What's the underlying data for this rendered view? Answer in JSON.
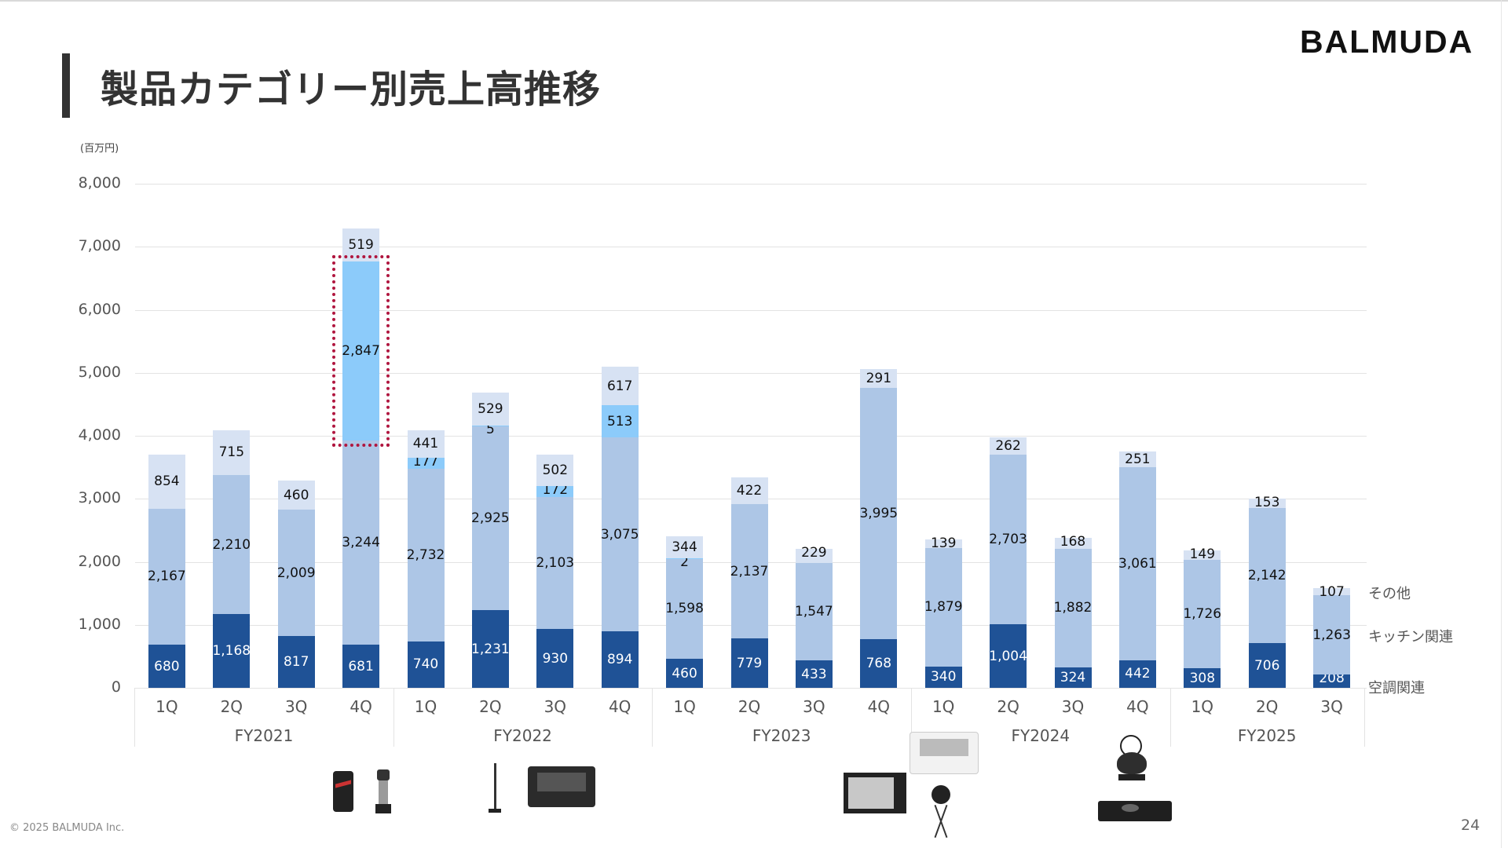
{
  "header": {
    "title": "製品カテゴリー別売上高推移",
    "logo": "BALMUDA"
  },
  "footer": {
    "copyright": "© 2025 BALMUDA Inc.",
    "page_number": "24"
  },
  "colors": {
    "air_conditioning": "#1f5296",
    "kitchen": "#adc6e6",
    "highlight_segment": "#8ccbfa",
    "other": "#d7e2f3",
    "highlight_border": "#b0163f"
  },
  "legend": {
    "other": "その他",
    "kitchen": "キッチン関連",
    "air_conditioning": "空調関連"
  },
  "axis": {
    "unit": "(百万円)",
    "yticks": [
      "8,000",
      "7,000",
      "6,000",
      "5,000",
      "4,000",
      "3,000",
      "2,000",
      "1,000",
      "0"
    ]
  },
  "chart_data": {
    "type": "bar",
    "stacked": true,
    "title": "製品カテゴリー別売上高推移",
    "ylabel": "(百万円)",
    "ylim": [
      0,
      8000
    ],
    "grid": true,
    "legend_position": "right",
    "fiscal_years": [
      {
        "label": "FY2021",
        "quarters": [
          "1Q",
          "2Q",
          "3Q",
          "4Q"
        ]
      },
      {
        "label": "FY2022",
        "quarters": [
          "1Q",
          "2Q",
          "3Q",
          "4Q"
        ]
      },
      {
        "label": "FY2023",
        "quarters": [
          "1Q",
          "2Q",
          "3Q",
          "4Q"
        ]
      },
      {
        "label": "FY2024",
        "quarters": [
          "1Q",
          "2Q",
          "3Q",
          "4Q"
        ]
      },
      {
        "label": "FY2025",
        "quarters": [
          "1Q",
          "2Q",
          "3Q"
        ]
      }
    ],
    "categories": [
      "FY2021 1Q",
      "FY2021 2Q",
      "FY2021 3Q",
      "FY2021 4Q",
      "FY2022 1Q",
      "FY2022 2Q",
      "FY2022 3Q",
      "FY2022 4Q",
      "FY2023 1Q",
      "FY2023 2Q",
      "FY2023 3Q",
      "FY2023 4Q",
      "FY2024 1Q",
      "FY2024 2Q",
      "FY2024 3Q",
      "FY2024 4Q",
      "FY2025 1Q",
      "FY2025 2Q",
      "FY2025 3Q"
    ],
    "series": [
      {
        "name": "空調関連",
        "values": [
          680,
          1168,
          817,
          681,
          740,
          1231,
          930,
          894,
          460,
          779,
          433,
          768,
          340,
          1004,
          324,
          442,
          308,
          706,
          208
        ]
      },
      {
        "name": "キッチン関連",
        "values": [
          2167,
          2210,
          2009,
          3244,
          2732,
          2925,
          2103,
          3075,
          1598,
          2137,
          1547,
          3995,
          1879,
          2703,
          1882,
          3061,
          1726,
          2142,
          1263
        ]
      },
      {
        "name": "highlighted category (light blue)",
        "values": [
          0,
          0,
          0,
          2847,
          177,
          5,
          172,
          513,
          2,
          0,
          0,
          0,
          0,
          0,
          0,
          0,
          0,
          0,
          0
        ]
      },
      {
        "name": "その他",
        "values": [
          854,
          715,
          460,
          519,
          441,
          529,
          502,
          617,
          344,
          422,
          229,
          291,
          139,
          262,
          168,
          251,
          149,
          153,
          107
        ]
      }
    ],
    "annotations": [
      "Dotted red box around FY2021 4Q light-blue segment (2,847)"
    ]
  },
  "bars": [
    {
      "q": "1Q",
      "ac": 680,
      "kt": 2167,
      "hl": 0,
      "ot": 854,
      "ac_l": "680",
      "kt_l": "2,167",
      "hl_l": "",
      "ot_l": "854"
    },
    {
      "q": "2Q",
      "ac": 1168,
      "kt": 2210,
      "hl": 0,
      "ot": 715,
      "ac_l": "1,168",
      "kt_l": "2,210",
      "hl_l": "",
      "ot_l": "715"
    },
    {
      "q": "3Q",
      "ac": 817,
      "kt": 2009,
      "hl": 0,
      "ot": 460,
      "ac_l": "817",
      "kt_l": "2,009",
      "hl_l": "",
      "ot_l": "460"
    },
    {
      "q": "4Q",
      "ac": 681,
      "kt": 3244,
      "hl": 2847,
      "ot": 519,
      "ac_l": "681",
      "kt_l": "3,244",
      "hl_l": "2,847",
      "ot_l": "519"
    },
    {
      "q": "1Q",
      "ac": 740,
      "kt": 2732,
      "hl": 177,
      "ot": 441,
      "ac_l": "740",
      "kt_l": "2,732",
      "hl_l": "177",
      "ot_l": "441"
    },
    {
      "q": "2Q",
      "ac": 1231,
      "kt": 2925,
      "hl": 5,
      "ot": 529,
      "ac_l": "1,231",
      "kt_l": "2,925",
      "hl_l": "5",
      "ot_l": "529"
    },
    {
      "q": "3Q",
      "ac": 930,
      "kt": 2103,
      "hl": 172,
      "ot": 502,
      "ac_l": "930",
      "kt_l": "2,103",
      "hl_l": "172",
      "ot_l": "502"
    },
    {
      "q": "4Q",
      "ac": 894,
      "kt": 3075,
      "hl": 513,
      "ot": 617,
      "ac_l": "894",
      "kt_l": "3,075",
      "hl_l": "513",
      "ot_l": "617"
    },
    {
      "q": "1Q",
      "ac": 460,
      "kt": 1598,
      "hl": 2,
      "ot": 344,
      "ac_l": "460",
      "kt_l": "1,598",
      "hl_l": "2",
      "ot_l": "344"
    },
    {
      "q": "2Q",
      "ac": 779,
      "kt": 2137,
      "hl": 0,
      "ot": 422,
      "ac_l": "779",
      "kt_l": "2,137",
      "hl_l": "",
      "ot_l": "422"
    },
    {
      "q": "3Q",
      "ac": 433,
      "kt": 1547,
      "hl": 0,
      "ot": 229,
      "ac_l": "433",
      "kt_l": "1,547",
      "hl_l": "",
      "ot_l": "229"
    },
    {
      "q": "4Q",
      "ac": 768,
      "kt": 3995,
      "hl": 0,
      "ot": 291,
      "ac_l": "768",
      "kt_l": "3,995",
      "hl_l": "",
      "ot_l": "291"
    },
    {
      "q": "1Q",
      "ac": 340,
      "kt": 1879,
      "hl": 0,
      "ot": 139,
      "ac_l": "340",
      "kt_l": "1,879",
      "hl_l": "",
      "ot_l": "139"
    },
    {
      "q": "2Q",
      "ac": 1004,
      "kt": 2703,
      "hl": 0,
      "ot": 262,
      "ac_l": "1,004",
      "kt_l": "2,703",
      "hl_l": "",
      "ot_l": "262"
    },
    {
      "q": "3Q",
      "ac": 324,
      "kt": 1882,
      "hl": 0,
      "ot": 168,
      "ac_l": "324",
      "kt_l": "1,882",
      "hl_l": "",
      "ot_l": "168"
    },
    {
      "q": "4Q",
      "ac": 442,
      "kt": 3061,
      "hl": 0,
      "ot": 251,
      "ac_l": "442",
      "kt_l": "3,061",
      "hl_l": "",
      "ot_l": "251"
    },
    {
      "q": "1Q",
      "ac": 308,
      "kt": 1726,
      "hl": 0,
      "ot": 149,
      "ac_l": "308",
      "kt_l": "1,726",
      "hl_l": "",
      "ot_l": "149"
    },
    {
      "q": "2Q",
      "ac": 706,
      "kt": 2142,
      "hl": 0,
      "ot": 153,
      "ac_l": "706",
      "kt_l": "2,142",
      "hl_l": "",
      "ot_l": "153"
    },
    {
      "q": "3Q",
      "ac": 208,
      "kt": 1263,
      "hl": 0,
      "ot": 107,
      "ac_l": "208",
      "kt_l": "1,263",
      "hl_l": "",
      "ot_l": "107"
    }
  ],
  "products": [
    "smartphone",
    "coffee-grinder",
    "stick-vacuum",
    "toaster-black",
    "griddle",
    "toaster-white",
    "outdoor-fan",
    "kettle",
    "gas-stove"
  ]
}
